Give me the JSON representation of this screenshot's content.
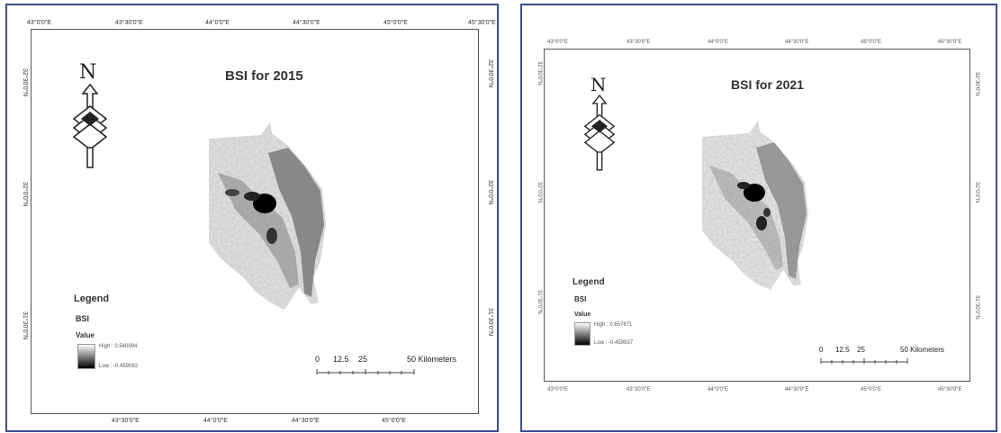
{
  "maps": [
    {
      "title": "BSI for 2015",
      "top_ticks": [
        "43°0'0\"E",
        "43°30'0\"E",
        "44°0'0\"E",
        "44°30'0\"E",
        "45°0'0\"E",
        "45°30'0\"E"
      ],
      "bottom_ticks": [
        "43°30'0\"E",
        "44°0'0\"E",
        "44°30'0\"E",
        "45°0'0\"E"
      ],
      "left_ticks": [
        "32°30'0\"N",
        "32°0'0\"N",
        "31°30'0\"N"
      ],
      "right_ticks": [
        "32°30'0\"N",
        "32°0'0\"N",
        "31°30'0\"N"
      ],
      "north_label": "N",
      "legend": {
        "title": "Legend",
        "layer": "BSI",
        "value_label": "Value",
        "high": "High : 0.540994",
        "low": "Low : -0.459082"
      },
      "scale": {
        "labels": [
          "0",
          "12.5",
          "25",
          "50 Kilometers"
        ]
      }
    },
    {
      "title": "BSI for 2021",
      "top_ticks": [
        "43°0'0\"E",
        "43°30'0\"E",
        "44°0'0\"E",
        "44°30'0\"E",
        "45°0'0\"E",
        "45°30'0\"E"
      ],
      "bottom_ticks": [
        "43°0'0\"E",
        "43°30'0\"E",
        "44°0'0\"E",
        "44°30'0\"E",
        "45°0'0\"E",
        "45°30'0\"E"
      ],
      "left_ticks": [
        "32°30'0\"N",
        "32°0'0\"N",
        "31°30'0\"N"
      ],
      "right_ticks": [
        "32°30'0\"N",
        "32°0'0\"N",
        "31°30'0\"N"
      ],
      "north_label": "N",
      "legend": {
        "title": "Legend",
        "layer": "BSI",
        "value_label": "Value",
        "high": "High : 0.657871",
        "low": "Low : -0.459937"
      },
      "scale": {
        "labels": [
          "0",
          "12.5",
          "25",
          "50 Kilometers"
        ]
      }
    }
  ],
  "colors": {
    "panel_border": "#3b4f8c",
    "raster_dark": "#000000",
    "raster_light": "#ffffff"
  }
}
